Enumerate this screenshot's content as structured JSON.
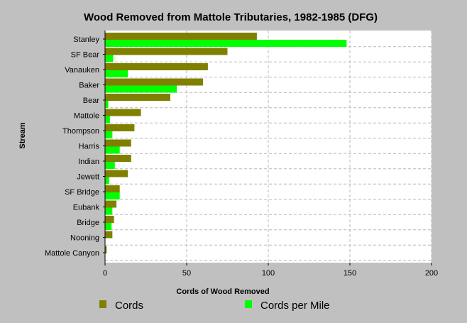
{
  "chart_data": {
    "type": "bar",
    "orientation": "horizontal",
    "title": "Wood Removed from Mattole Tributaries, 1982-1985 (DFG)",
    "xlabel": "Cords of Wood Removed",
    "ylabel": "Stream",
    "xlim": [
      0,
      200
    ],
    "xticks": [
      0,
      50,
      100,
      150,
      200
    ],
    "grid": true,
    "legend_position": "bottom",
    "categories": [
      "Stanley",
      "SF Bear",
      "Vanauken",
      "Baker",
      "Bear",
      "Mattole",
      "Thompson",
      "Harris",
      "Indian",
      "Jewett",
      "SF Bridge",
      "Eubank",
      "Bridge",
      "Nooning",
      "Mattole Canyon"
    ],
    "series": [
      {
        "name": "Cords",
        "color": "#808000",
        "values": [
          93,
          75,
          63,
          60,
          40,
          22,
          18,
          16,
          16,
          14,
          9,
          7,
          5.5,
          4.5,
          1
        ]
      },
      {
        "name": "Cords per Mile",
        "color": "#00ff00",
        "values": [
          148,
          5,
          14,
          44,
          2,
          3,
          4.5,
          9,
          6,
          2.5,
          9,
          4.5,
          4,
          0,
          0
        ]
      }
    ]
  }
}
